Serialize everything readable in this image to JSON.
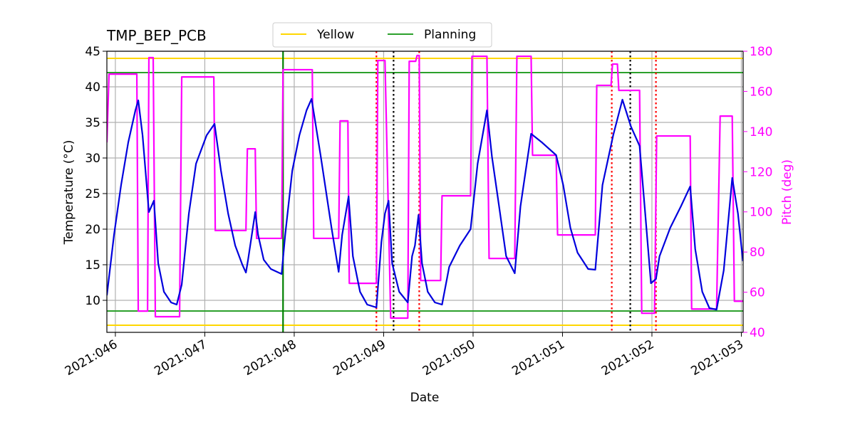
{
  "chart_data": {
    "type": "line",
    "title": "TMP_BEP_PCB",
    "x_label": "Date",
    "y_label": "Temperature (°C)",
    "y2_label": "Pitch (deg)",
    "y2_color": "#ff00ff",
    "xlim": [
      45.905,
      53.02
    ],
    "xticks": [
      {
        "value": 46,
        "label": "2021:046"
      },
      {
        "value": 47,
        "label": "2021:047"
      },
      {
        "value": 48,
        "label": "2021:048"
      },
      {
        "value": 49,
        "label": "2021:049"
      },
      {
        "value": 50,
        "label": "2021:050"
      },
      {
        "value": 51,
        "label": "2021:051"
      },
      {
        "value": 52,
        "label": "2021:052"
      },
      {
        "value": 53,
        "label": "2021:053"
      }
    ],
    "ylim": [
      5.5,
      45
    ],
    "yticks": [
      10,
      15,
      20,
      25,
      30,
      35,
      40,
      45
    ],
    "y2lim": [
      40,
      180
    ],
    "y2ticks": [
      40,
      60,
      80,
      100,
      120,
      140,
      160,
      180
    ],
    "grid": true,
    "legend": "top",
    "limit_lines": [
      {
        "name": "Yellow",
        "color": "#ffd700",
        "y": [
          44,
          6.5
        ]
      },
      {
        "name": "Planning",
        "color": "#2ca02c",
        "y": [
          42,
          8.5
        ]
      }
    ],
    "vlines": [
      {
        "x": 47.875,
        "color": "#008000",
        "style": "solid"
      },
      {
        "x": 48.919,
        "color": "#ff0000",
        "style": "dotted"
      },
      {
        "x": 49.398,
        "color": "#ff0000",
        "style": "dotted"
      },
      {
        "x": 51.551,
        "color": "#ff0000",
        "style": "dotted"
      },
      {
        "x": 52.045,
        "color": "#ff0000",
        "style": "dotted"
      },
      {
        "x": 49.111,
        "color": "#000000",
        "style": "dotted"
      },
      {
        "x": 51.758,
        "color": "#000000",
        "style": "dotted"
      }
    ],
    "series": [
      {
        "color": "#ff00ff",
        "axis": "y2",
        "x": [
          45.905,
          45.929,
          46.24,
          46.256,
          46.36,
          46.375,
          46.423,
          46.447,
          46.718,
          46.742,
          47.101,
          47.117,
          47.46,
          47.476,
          47.564,
          47.579,
          47.859,
          47.875,
          48.202,
          48.218,
          48.497,
          48.513,
          48.6,
          48.616,
          48.919,
          48.935,
          49.015,
          49.079,
          49.27,
          49.286,
          49.358,
          49.374,
          49.398,
          49.414,
          49.637,
          49.653,
          49.972,
          49.988,
          50.155,
          50.179,
          50.466,
          50.49,
          50.649,
          50.665,
          50.929,
          50.945,
          51.367,
          51.383,
          51.543,
          51.559,
          51.614,
          51.63,
          51.862,
          51.886,
          52.029,
          52.053,
          52.428,
          52.444,
          52.723,
          52.763,
          52.898,
          52.922,
          53.018
        ],
        "values": [
          134.6,
          168.6,
          168.6,
          50.6,
          50.6,
          176.8,
          176.8,
          47.8,
          47.8,
          167.2,
          167.2,
          90.7,
          90.7,
          131.4,
          131.4,
          86.8,
          86.8,
          170.8,
          170.8,
          86.8,
          86.8,
          145.3,
          145.3,
          64.4,
          64.4,
          175.4,
          175.4,
          47.1,
          47.1,
          175.0,
          175.0,
          177.9,
          177.9,
          65.8,
          65.8,
          108.0,
          108.0,
          177.5,
          177.5,
          76.8,
          76.8,
          177.5,
          177.5,
          128.2,
          128.2,
          88.5,
          88.5,
          163.0,
          163.0,
          173.6,
          173.6,
          160.5,
          160.5,
          49.5,
          49.5,
          137.8,
          137.8,
          51.6,
          51.6,
          147.7,
          147.7,
          55.5,
          55.5
        ]
      },
      {
        "color": "#0000dd",
        "axis": "y",
        "x": [
          45.905,
          45.985,
          46.064,
          46.144,
          46.224,
          46.256,
          46.304,
          46.375,
          46.431,
          46.479,
          46.543,
          46.623,
          46.686,
          46.742,
          46.822,
          46.902,
          47.021,
          47.109,
          47.181,
          47.261,
          47.34,
          47.42,
          47.46,
          47.484,
          47.564,
          47.596,
          47.659,
          47.739,
          47.859,
          47.899,
          47.978,
          48.058,
          48.138,
          48.194,
          48.297,
          48.417,
          48.497,
          48.536,
          48.608,
          48.656,
          48.736,
          48.816,
          48.919,
          48.975,
          49.015,
          49.055,
          49.095,
          49.174,
          49.27,
          49.318,
          49.35,
          49.39,
          49.429,
          49.493,
          49.573,
          49.653,
          49.733,
          49.852,
          49.972,
          50.051,
          50.155,
          50.211,
          50.291,
          50.37,
          50.466,
          50.53,
          50.649,
          50.769,
          50.929,
          51.008,
          51.088,
          51.168,
          51.287,
          51.367,
          51.447,
          51.567,
          51.67,
          51.766,
          51.862,
          51.925,
          51.989,
          52.045,
          52.085,
          52.205,
          52.324,
          52.428,
          52.484,
          52.563,
          52.643,
          52.723,
          52.803,
          52.898,
          52.962,
          53.018
        ],
        "values": [
          10.7,
          19.2,
          26.2,
          32.2,
          36.7,
          38.1,
          33.2,
          22.4,
          24.0,
          15.2,
          11.2,
          9.7,
          9.4,
          12.2,
          22.2,
          29.2,
          33.2,
          34.8,
          28.2,
          22.2,
          17.7,
          15.0,
          13.9,
          15.7,
          22.4,
          19.2,
          15.7,
          14.4,
          13.7,
          19.2,
          28.2,
          33.2,
          36.7,
          38.3,
          30.2,
          20.2,
          14.0,
          19.2,
          24.6,
          16.2,
          11.2,
          9.4,
          9.0,
          18.2,
          22.2,
          24.0,
          15.2,
          11.2,
          9.7,
          16.2,
          17.7,
          22.0,
          15.2,
          11.2,
          9.7,
          9.4,
          14.7,
          17.7,
          20.0,
          29.2,
          36.7,
          30.2,
          23.2,
          16.2,
          13.8,
          23.2,
          33.4,
          32.2,
          30.4,
          26.2,
          20.2,
          16.7,
          14.4,
          14.3,
          26.2,
          33.2,
          38.2,
          34.4,
          31.7,
          22.2,
          12.4,
          13.0,
          16.2,
          20.2,
          23.2,
          26.0,
          17.2,
          11.2,
          8.9,
          8.7,
          14.2,
          27.2,
          22.2,
          15.5
        ]
      }
    ]
  }
}
